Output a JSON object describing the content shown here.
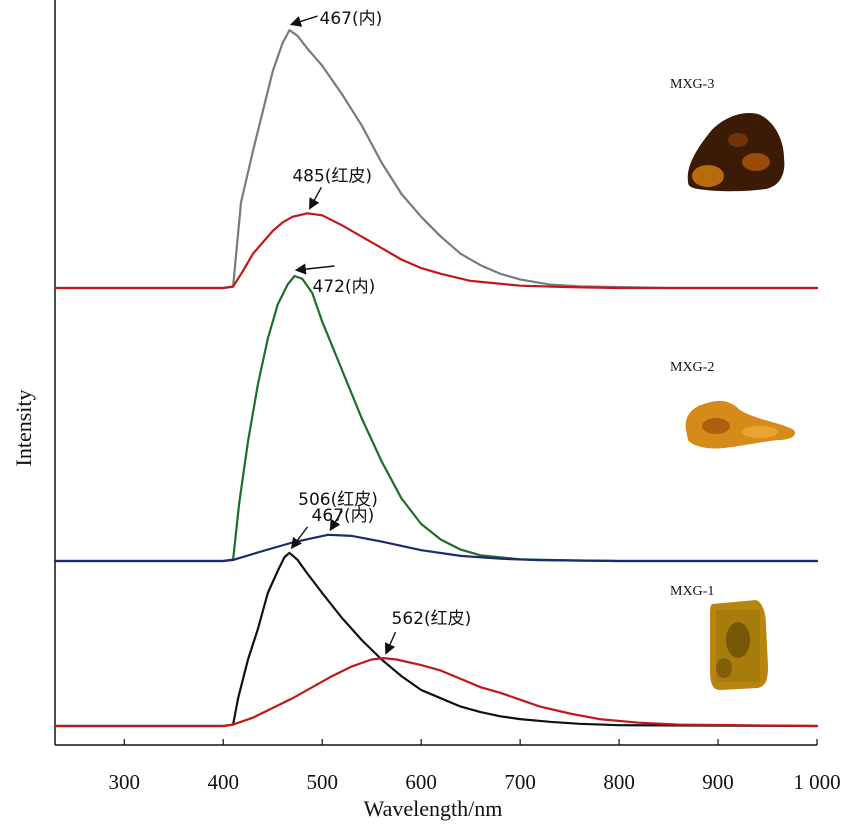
{
  "chart_data": {
    "type": "line",
    "xlabel": "Wavelength/nm",
    "ylabel": "Intensity",
    "xlim": [
      230,
      1000
    ],
    "xticks": [
      300,
      400,
      500,
      600,
      700,
      800,
      900,
      1000
    ],
    "xtick_labels": [
      "300",
      "400",
      "500",
      "600",
      "700",
      "800",
      "900",
      "1 000"
    ],
    "grid": false,
    "colors": {
      "mxg3_inner": "#7a7a7a",
      "mxg3_skin": "#c0181b",
      "mxg2_inner": "#1d6e2a",
      "mxg2_skin": "#1c2a6b",
      "mxg1_inner": "#111111",
      "mxg1_skin": "#c0181b"
    },
    "samples": [
      {
        "name": "MXG-3",
        "series": [
          {
            "key": "mxg3_inner",
            "x": [
              230,
              400,
              410,
              418,
              430,
              440,
              450,
              460,
              467,
              475,
              485,
              500,
              520,
              540,
              560,
              580,
              600,
              620,
              640,
              660,
              680,
              700,
              730,
              760,
              800,
              850,
              900,
              1000
            ],
            "y": [
              0,
              0,
              0.005,
              0.3,
              0.48,
              0.62,
              0.76,
              0.86,
              0.905,
              0.885,
              0.84,
              0.78,
              0.68,
              0.57,
              0.44,
              0.33,
              0.25,
              0.18,
              0.12,
              0.08,
              0.05,
              0.03,
              0.012,
              0.006,
              0.003,
              0,
              0,
              0
            ]
          },
          {
            "key": "mxg3_skin",
            "x": [
              230,
              400,
              410,
              420,
              430,
              440,
              450,
              460,
              470,
              485,
              500,
              520,
              540,
              560,
              580,
              600,
              620,
              650,
              700,
              750,
              800,
              900,
              1000
            ],
            "y": [
              0,
              0,
              0.005,
              0.06,
              0.12,
              0.16,
              0.2,
              0.23,
              0.25,
              0.262,
              0.255,
              0.22,
              0.18,
              0.14,
              0.1,
              0.07,
              0.05,
              0.025,
              0.008,
              0.003,
              0,
              0,
              0
            ]
          }
        ]
      },
      {
        "name": "MXG-2",
        "series": [
          {
            "key": "mxg2_inner",
            "x": [
              230,
              400,
              410,
              416,
              425,
              435,
              445,
              455,
              465,
              472,
              480,
              490,
              500,
              520,
              540,
              560,
              580,
              600,
              620,
              640,
              660,
              700,
              750,
              800,
              900,
              1000
            ],
            "y": [
              0,
              0,
              0.005,
              0.2,
              0.42,
              0.62,
              0.78,
              0.9,
              0.97,
              1.0,
              0.99,
              0.94,
              0.84,
              0.67,
              0.5,
              0.35,
              0.22,
              0.13,
              0.075,
              0.04,
              0.02,
              0.006,
              0.002,
              0,
              0,
              0
            ]
          },
          {
            "key": "mxg2_skin",
            "x": [
              230,
              400,
              410,
              440,
              470,
              490,
              506,
              530,
              560,
              600,
              640,
              680,
              720,
              800,
              1000
            ],
            "y": [
              0,
              0,
              0.004,
              0.035,
              0.065,
              0.08,
              0.092,
              0.088,
              0.068,
              0.038,
              0.018,
              0.008,
              0.003,
              0,
              0
            ]
          }
        ]
      },
      {
        "name": "MXG-1",
        "series": [
          {
            "key": "mxg1_inner",
            "x": [
              230,
              400,
              410,
              415,
              425,
              435,
              445,
              455,
              462,
              467,
              475,
              485,
              500,
              520,
              540,
              560,
              580,
              600,
              620,
              640,
              660,
              680,
              700,
              730,
              760,
              800,
              1000
            ],
            "y": [
              0,
              0,
              0.005,
              0.1,
              0.24,
              0.35,
              0.48,
              0.56,
              0.61,
              0.625,
              0.6,
              0.55,
              0.48,
              0.39,
              0.31,
              0.24,
              0.18,
              0.13,
              0.1,
              0.07,
              0.05,
              0.035,
              0.025,
              0.015,
              0.008,
              0.003,
              0
            ]
          },
          {
            "key": "mxg1_skin",
            "x": [
              230,
              400,
              410,
              430,
              450,
              470,
              490,
              510,
              530,
              550,
              562,
              575,
              600,
              620,
              640,
              660,
              680,
              700,
              720,
              750,
              780,
              820,
              860,
              1000
            ],
            "y": [
              0,
              0,
              0.005,
              0.03,
              0.065,
              0.1,
              0.14,
              0.18,
              0.215,
              0.24,
              0.245,
              0.24,
              0.22,
              0.2,
              0.17,
              0.14,
              0.12,
              0.095,
              0.07,
              0.045,
              0.025,
              0.012,
              0.005,
              0
            ]
          }
        ]
      }
    ],
    "annotations": [
      {
        "text": "467(内)",
        "x": 467,
        "series": "mxg3_inner"
      },
      {
        "text": "485(红皮)",
        "x": 485,
        "series": "mxg3_skin"
      },
      {
        "text": "472(内)",
        "x": 472,
        "series": "mxg2_inner"
      },
      {
        "text": "506(红皮)",
        "x": 506,
        "series": "mxg2_skin"
      },
      {
        "text": "467(内)",
        "x": 467,
        "series": "mxg1_inner"
      },
      {
        "text": "562(红皮)",
        "x": 562,
        "series": "mxg1_skin"
      }
    ],
    "sample_labels": [
      "MXG-3",
      "MXG-2",
      "MXG-1"
    ]
  }
}
